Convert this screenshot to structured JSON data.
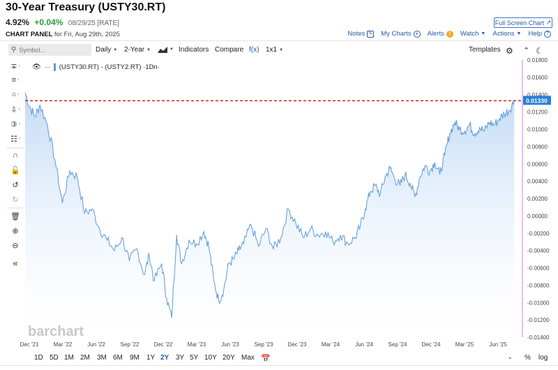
{
  "header": {
    "title": "30-Year Treasury (USTY30.RT)",
    "last": "4.92%",
    "change": "+0.04%",
    "meta": "08/29/25 [RATE]",
    "fullscreen_label": "Full Screen Chart",
    "panel_label": "CHART PANEL",
    "panel_date": "for Fri, Aug 29th, 2025"
  },
  "top_links": [
    {
      "label": "Notes",
      "icon": "edit-icon"
    },
    {
      "label": "My Charts",
      "icon": "plus-circle-icon"
    },
    {
      "label": "Alerts",
      "icon": "alert-icon"
    },
    {
      "label": "Watch",
      "icon": "chevron-down-icon"
    },
    {
      "label": "Actions",
      "icon": "chevron-down-icon"
    },
    {
      "label": "Help",
      "icon": "help-icon"
    }
  ],
  "toolbar": {
    "search_placeholder": "Symbol...",
    "interval": "Daily",
    "period": "2-Year",
    "indicators": "Indicators",
    "compare": "Compare",
    "fx": "f(x)",
    "layout": "1x1",
    "templates": "Templates"
  },
  "legend": {
    "series_label": "(USTY30.RT) - (USTY2.RT) ·1Dn·"
  },
  "watermark": "barchart",
  "price_tag": "0.01330",
  "colors": {
    "line": "#5b9bd5",
    "fill_top": "#bcd6f5",
    "dashed": "#d11f1f",
    "tag_bg": "#2a7fd8",
    "axis_line": "#d87bd0",
    "accent": "#2459a8"
  },
  "ranges": [
    "1D",
    "5D",
    "1M",
    "2M",
    "3M",
    "6M",
    "9M",
    "1Y",
    "2Y",
    "3Y",
    "5Y",
    "10Y",
    "20Y",
    "Max"
  ],
  "active_range": "2Y",
  "bottom_right": {
    "percent": "%",
    "log": "log"
  },
  "chart_data": {
    "type": "area",
    "y_ticks": [
      "0.01800",
      "0.01600",
      "0.01400",
      "0.01200",
      "0.01000",
      "0.00800",
      "0.00600",
      "0.00400",
      "0.00200",
      "0.00000",
      "-0.00200",
      "-0.00400",
      "-0.00600",
      "-0.00800",
      "-0.01000",
      "-0.01200",
      "-0.01400"
    ],
    "x_ticks": [
      "Dec '21",
      "Mar '22",
      "Jun '22",
      "Sep '22",
      "Dec '22",
      "Mar '23",
      "Jun '23",
      "Sep '23",
      "Dec '23",
      "Mar '24",
      "Jun '24",
      "Sep '24",
      "Dec '24",
      "Mar '25",
      "Jun '25"
    ],
    "ylim": [
      -0.014,
      0.018
    ],
    "reference_level": 0.0133,
    "series": [
      {
        "values": [
          [
            0.0,
            0.0142
          ],
          [
            0.01,
            0.0125
          ],
          [
            0.02,
            0.0115
          ],
          [
            0.03,
            0.0128
          ],
          [
            0.045,
            0.0105
          ],
          [
            0.06,
            0.0065
          ],
          [
            0.075,
            0.0015
          ],
          [
            0.09,
            0.0052
          ],
          [
            0.105,
            0.0045
          ],
          [
            0.12,
            0.0003
          ],
          [
            0.135,
            0.0008
          ],
          [
            0.15,
            -0.0015
          ],
          [
            0.165,
            -0.0028
          ],
          [
            0.18,
            -0.004
          ],
          [
            0.195,
            -0.0025
          ],
          [
            0.21,
            -0.0052
          ],
          [
            0.225,
            -0.0038
          ],
          [
            0.24,
            -0.0068
          ],
          [
            0.25,
            -0.0045
          ],
          [
            0.26,
            -0.0075
          ],
          [
            0.275,
            -0.0055
          ],
          [
            0.285,
            -0.0095
          ],
          [
            0.295,
            -0.0118
          ],
          [
            0.305,
            -0.0022
          ],
          [
            0.315,
            -0.0055
          ],
          [
            0.33,
            -0.0028
          ],
          [
            0.345,
            -0.0032
          ],
          [
            0.36,
            -0.0018
          ],
          [
            0.37,
            -0.0035
          ],
          [
            0.38,
            -0.0075
          ],
          [
            0.39,
            -0.0098
          ],
          [
            0.4,
            -0.0085
          ],
          [
            0.41,
            -0.0055
          ],
          [
            0.42,
            -0.005
          ],
          [
            0.43,
            -0.004
          ],
          [
            0.44,
            -0.0032
          ],
          [
            0.455,
            -0.001
          ],
          [
            0.47,
            -0.0035
          ],
          [
            0.485,
            -0.0015
          ],
          [
            0.5,
            -0.0038
          ],
          [
            0.515,
            -0.0025
          ],
          [
            0.53,
            0.0008
          ],
          [
            0.545,
            -0.0008
          ],
          [
            0.56,
            -0.0025
          ],
          [
            0.575,
            -0.0015
          ],
          [
            0.59,
            -0.0022
          ],
          [
            0.605,
            -0.0018
          ],
          [
            0.62,
            -0.003
          ],
          [
            0.635,
            -0.0022
          ],
          [
            0.65,
            -0.0032
          ],
          [
            0.665,
            -0.0025
          ],
          [
            0.675,
            -0.0012
          ],
          [
            0.685,
            0.0008
          ],
          [
            0.695,
            0.0028
          ],
          [
            0.705,
            0.0035
          ],
          [
            0.715,
            0.0025
          ],
          [
            0.725,
            0.0045
          ],
          [
            0.735,
            0.0055
          ],
          [
            0.745,
            0.0042
          ],
          [
            0.755,
            0.0035
          ],
          [
            0.765,
            0.0048
          ],
          [
            0.775,
            0.0038
          ],
          [
            0.785,
            0.0022
          ],
          [
            0.795,
            0.0045
          ],
          [
            0.805,
            0.0058
          ],
          [
            0.815,
            0.0052
          ],
          [
            0.825,
            0.0062
          ],
          [
            0.835,
            0.0048
          ],
          [
            0.845,
            0.007
          ],
          [
            0.855,
            0.0095
          ],
          [
            0.865,
            0.0108
          ],
          [
            0.875,
            0.01
          ],
          [
            0.885,
            0.0098
          ],
          [
            0.895,
            0.0105
          ],
          [
            0.905,
            0.0095
          ],
          [
            0.915,
            0.0102
          ],
          [
            0.925,
            0.0098
          ],
          [
            0.935,
            0.0108
          ],
          [
            0.945,
            0.0105
          ],
          [
            0.955,
            0.0112
          ],
          [
            0.965,
            0.0118
          ],
          [
            0.975,
            0.0122
          ],
          [
            0.985,
            0.0133
          ]
        ]
      }
    ]
  }
}
